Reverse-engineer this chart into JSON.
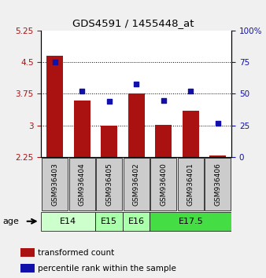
{
  "title": "GDS4591 / 1455448_at",
  "samples": [
    "GSM936403",
    "GSM936404",
    "GSM936405",
    "GSM936402",
    "GSM936400",
    "GSM936401",
    "GSM936406"
  ],
  "bar_values": [
    4.65,
    3.6,
    3.0,
    3.75,
    3.02,
    3.35,
    2.28
  ],
  "scatter_values": [
    75,
    52,
    44,
    58,
    45,
    52,
    27
  ],
  "bar_color": "#aa1111",
  "scatter_color": "#1111aa",
  "ylim_left": [
    2.25,
    5.25
  ],
  "ylim_right": [
    0,
    100
  ],
  "yticks_left": [
    2.25,
    3.0,
    3.75,
    4.5,
    5.25
  ],
  "yticks_right": [
    0,
    25,
    50,
    75,
    100
  ],
  "ytick_labels_left": [
    "2.25",
    "3",
    "3.75",
    "4.5",
    "5.25"
  ],
  "ytick_labels_right": [
    "0",
    "25",
    "50",
    "75",
    "100%"
  ],
  "hlines": [
    3.0,
    3.75,
    4.5
  ],
  "age_groups": [
    {
      "label": "E14",
      "start": 0,
      "end": 1,
      "color": "#ccffcc"
    },
    {
      "label": "E15",
      "start": 2,
      "end": 2,
      "color": "#aaffaa"
    },
    {
      "label": "E16",
      "start": 3,
      "end": 3,
      "color": "#aaffaa"
    },
    {
      "label": "E17.5",
      "start": 4,
      "end": 6,
      "color": "#44dd44"
    }
  ],
  "legend_bar_label": "transformed count",
  "legend_scatter_label": "percentile rank within the sample",
  "bar_bottom": 2.25,
  "sample_box_color": "#cccccc",
  "fig_bg": "#f0f0f0"
}
